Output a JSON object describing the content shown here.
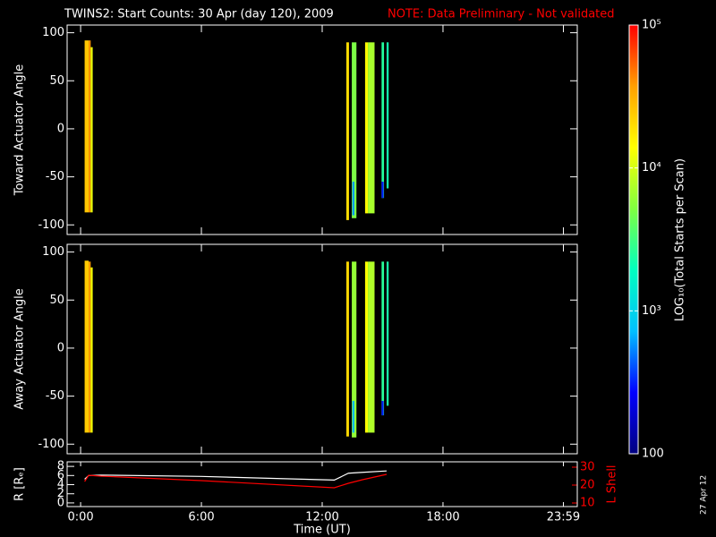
{
  "title": "TWINS2: Start Counts: 30 Apr (day 120), 2009",
  "note": "NOTE: Data Preliminary - Not validated",
  "date_stamp": "27 Apr 12",
  "colorbar": {
    "label": "LOG₁₀(Total Starts per Scan)",
    "lim": [
      100,
      100000
    ],
    "log": true,
    "ticks": [
      100,
      {
        "value": 1000,
        "label": "10³"
      },
      {
        "value": 10000,
        "label": "10⁴"
      },
      {
        "value": 100000,
        "label": "10⁵"
      }
    ],
    "colormap": [
      "#000080",
      "#0000ff",
      "#00c0ff",
      "#00ffc0",
      "#80ff40",
      "#ffff00",
      "#ffa000",
      "#ff0000"
    ]
  },
  "chart_data": [
    {
      "type": "heatmap",
      "ylabel": "Toward Actuator Angle",
      "xlim": [
        -0.67,
        24.67
      ],
      "ylim": [
        -110,
        108
      ],
      "yticks": [
        -100,
        -50,
        0,
        50,
        100
      ],
      "cells": [
        {
          "time_start": 0.2,
          "time_end": 0.4,
          "angle_min": -87,
          "angle_max": 92,
          "counts": 25000
        },
        {
          "time_start": 0.4,
          "time_end": 0.5,
          "angle_min": -87,
          "angle_max": 92,
          "counts": 40000
        },
        {
          "time_start": 0.5,
          "time_end": 0.6,
          "angle_min": -87,
          "angle_max": 85,
          "counts": 12000
        },
        {
          "time_start": 13.2,
          "time_end": 13.33,
          "angle_min": -95,
          "angle_max": 90,
          "counts": 20000
        },
        {
          "time_start": 13.47,
          "time_end": 13.7,
          "angle_min": -93,
          "angle_max": 90,
          "counts": 5000
        },
        {
          "time_start": 13.5,
          "time_end": 13.6,
          "angle_min": -90,
          "angle_max": -55,
          "counts": 600
        },
        {
          "time_start": 14.13,
          "time_end": 14.27,
          "angle_min": -88,
          "angle_max": 90,
          "counts": 15000
        },
        {
          "time_start": 14.27,
          "time_end": 14.6,
          "angle_min": -88,
          "angle_max": 90,
          "counts": 7000
        },
        {
          "time_start": 14.95,
          "time_end": 15.07,
          "angle_min": -72,
          "angle_max": 90,
          "counts": 2500
        },
        {
          "time_start": 14.95,
          "time_end": 15.05,
          "angle_min": -72,
          "angle_max": -55,
          "counts": 300
        },
        {
          "time_start": 15.2,
          "time_end": 15.3,
          "angle_min": -62,
          "angle_max": 90,
          "counts": 2200
        }
      ]
    },
    {
      "type": "heatmap",
      "ylabel": "Away Actuator Angle",
      "xlim": [
        -0.67,
        24.67
      ],
      "ylim": [
        -110,
        108
      ],
      "yticks": [
        -100,
        -50,
        0,
        50,
        100
      ],
      "cells": [
        {
          "time_start": 0.2,
          "time_end": 0.4,
          "angle_min": -88,
          "angle_max": 91,
          "counts": 24000
        },
        {
          "time_start": 0.4,
          "time_end": 0.5,
          "angle_min": -88,
          "angle_max": 90,
          "counts": 38000
        },
        {
          "time_start": 0.5,
          "time_end": 0.6,
          "angle_min": -88,
          "angle_max": 84,
          "counts": 13000
        },
        {
          "time_start": 13.2,
          "time_end": 13.33,
          "angle_min": -92,
          "angle_max": 90,
          "counts": 21000
        },
        {
          "time_start": 13.47,
          "time_end": 13.7,
          "angle_min": -93,
          "angle_max": 90,
          "counts": 6000
        },
        {
          "time_start": 13.5,
          "time_end": 13.6,
          "angle_min": -88,
          "angle_max": -55,
          "counts": 700
        },
        {
          "time_start": 14.13,
          "time_end": 14.27,
          "angle_min": -88,
          "angle_max": 90,
          "counts": 14000
        },
        {
          "time_start": 14.27,
          "time_end": 14.6,
          "angle_min": -88,
          "angle_max": 90,
          "counts": 7500
        },
        {
          "time_start": 14.95,
          "time_end": 15.07,
          "angle_min": -70,
          "angle_max": 90,
          "counts": 2600
        },
        {
          "time_start": 14.95,
          "time_end": 15.05,
          "angle_min": -70,
          "angle_max": -55,
          "counts": 300
        },
        {
          "time_start": 15.2,
          "time_end": 15.3,
          "angle_min": -60,
          "angle_max": 90,
          "counts": 2300
        }
      ]
    },
    {
      "type": "line",
      "ylabel": "R [Rₑ]",
      "y2label": "L Shell",
      "xlabel": "Time (UT)",
      "xlim": [
        -0.67,
        24.67
      ],
      "xticks": [
        {
          "value": 0,
          "label": "0:00"
        },
        {
          "value": 6,
          "label": "6:00"
        },
        {
          "value": 12,
          "label": "12:00"
        },
        {
          "value": 18,
          "label": "18:00"
        },
        {
          "value": 23.98,
          "label": "23:59"
        }
      ],
      "ylim": [
        -0.8,
        9
      ],
      "yticks": [
        0,
        2,
        4,
        6,
        8
      ],
      "y2lim": [
        8,
        33
      ],
      "y2ticks": [
        10,
        20,
        30
      ],
      "y2color": "#ff0000",
      "x": [
        0.2,
        0.4,
        1.0,
        6.0,
        12.6,
        13.3,
        14.0,
        15.2
      ],
      "series": [
        {
          "color": "#ffffff",
          "values": [
            5.2,
            6.0,
            6.1,
            5.8,
            5.0,
            6.5,
            6.7,
            7.0
          ]
        },
        {
          "color": "#ff0000",
          "axis": "y2",
          "values": [
            22,
            25.5,
            25,
            22.5,
            18.5,
            21,
            23,
            26
          ]
        }
      ]
    }
  ]
}
